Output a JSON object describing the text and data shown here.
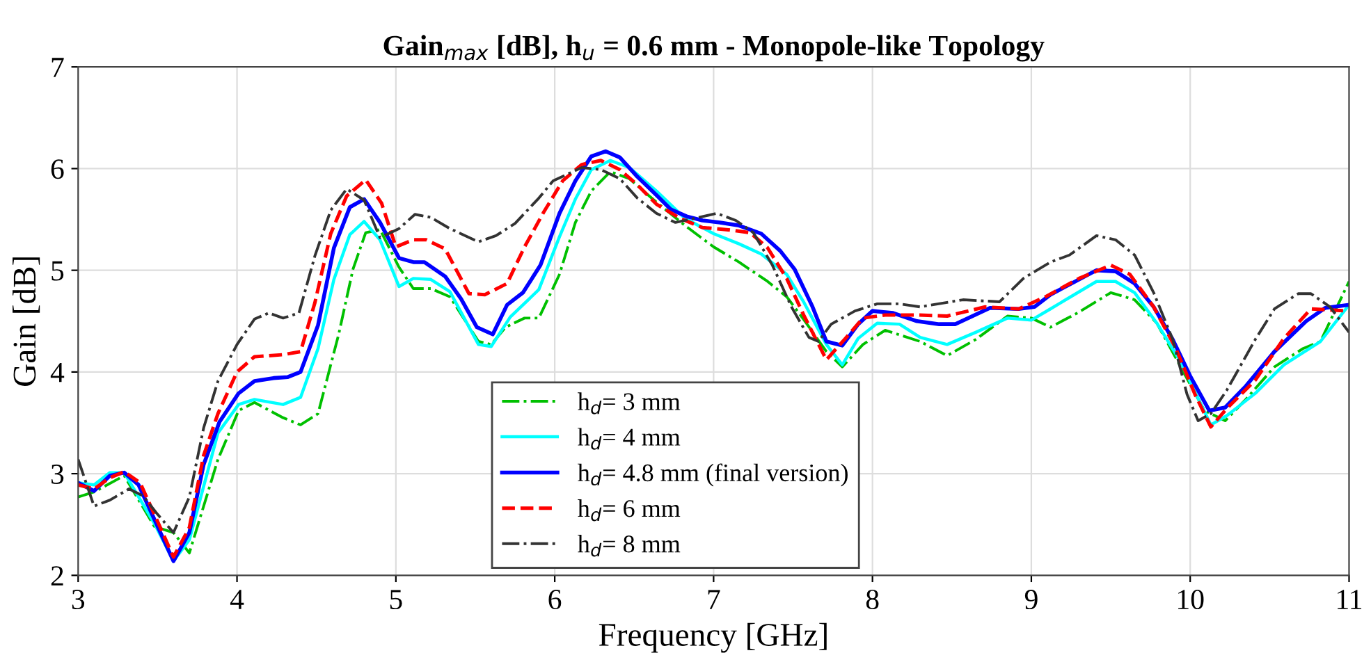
{
  "chart_data": {
    "type": "line",
    "title": "Gain$_{max}$ [dB], h$_{u}$ = 0.6 mm - Monopole-like Topology",
    "xlabel": "Frequency [GHz]",
    "ylabel": "Gain [dB]",
    "xlim": [
      3,
      11
    ],
    "ylim": [
      2,
      7
    ],
    "xticks": [
      3,
      4,
      5,
      6,
      7,
      8,
      9,
      10,
      11
    ],
    "yticks": [
      2,
      3,
      4,
      5,
      6,
      7
    ],
    "grid": true,
    "legend": "bottom",
    "marker": "none",
    "series": [
      {
        "name": "h$_{d}$= 3 mm",
        "color": "#00c000",
        "line_style": "dashdot",
        "x": [
          3.0,
          3.1,
          3.29,
          3.48,
          3.6,
          3.7,
          3.88,
          4.01,
          4.11,
          4.29,
          4.4,
          4.51,
          4.64,
          4.73,
          4.81,
          4.9,
          5.02,
          5.11,
          5.22,
          5.34,
          5.52,
          5.6,
          5.69,
          5.81,
          5.9,
          6.03,
          6.13,
          6.23,
          6.35,
          6.47,
          6.64,
          6.82,
          7.0,
          7.16,
          7.34,
          7.46,
          7.57,
          7.71,
          7.81,
          7.94,
          8.08,
          8.3,
          8.47,
          8.65,
          8.85,
          9.0,
          9.12,
          9.29,
          9.5,
          9.65,
          9.79,
          9.94,
          10.09,
          10.22,
          10.35,
          10.53,
          10.71,
          10.82,
          11.0
        ],
        "values": [
          2.77,
          2.82,
          2.98,
          2.48,
          2.42,
          2.22,
          3.14,
          3.62,
          3.7,
          3.55,
          3.48,
          3.59,
          4.37,
          5.01,
          5.37,
          5.4,
          5.03,
          4.82,
          4.82,
          4.74,
          4.3,
          4.27,
          4.44,
          4.53,
          4.53,
          4.96,
          5.47,
          5.78,
          5.97,
          5.9,
          5.67,
          5.44,
          5.23,
          5.08,
          4.89,
          4.74,
          4.51,
          4.2,
          4.05,
          4.27,
          4.41,
          4.3,
          4.16,
          4.32,
          4.55,
          4.53,
          4.44,
          4.58,
          4.78,
          4.71,
          4.48,
          4.05,
          3.62,
          3.52,
          3.73,
          4.05,
          4.23,
          4.3,
          4.89
        ]
      },
      {
        "name": "h$_{d}$= 4 mm",
        "color": "#00ffff",
        "line_style": "solid",
        "x": [
          3.0,
          3.1,
          3.2,
          3.29,
          3.48,
          3.6,
          3.7,
          3.88,
          4.01,
          4.11,
          4.29,
          4.4,
          4.51,
          4.61,
          4.71,
          4.8,
          4.9,
          5.02,
          5.11,
          5.22,
          5.34,
          5.52,
          5.6,
          5.72,
          5.9,
          6.03,
          6.13,
          6.23,
          6.35,
          6.47,
          6.64,
          6.82,
          7.0,
          7.16,
          7.3,
          7.46,
          7.57,
          7.71,
          7.81,
          7.91,
          8.03,
          8.17,
          8.3,
          8.47,
          8.65,
          8.85,
          9.0,
          9.12,
          9.41,
          9.53,
          9.65,
          9.79,
          9.94,
          10.13,
          10.23,
          10.41,
          10.59,
          10.82,
          11.0
        ],
        "values": [
          2.91,
          2.89,
          3.01,
          3.01,
          2.51,
          2.14,
          2.35,
          3.4,
          3.68,
          3.73,
          3.68,
          3.75,
          4.23,
          4.91,
          5.35,
          5.48,
          5.3,
          4.84,
          4.92,
          4.91,
          4.79,
          4.27,
          4.25,
          4.54,
          4.81,
          5.33,
          5.7,
          5.99,
          6.08,
          6.01,
          5.78,
          5.51,
          5.36,
          5.26,
          5.16,
          4.96,
          4.68,
          4.27,
          4.07,
          4.33,
          4.48,
          4.47,
          4.34,
          4.27,
          4.39,
          4.53,
          4.51,
          4.62,
          4.89,
          4.89,
          4.78,
          4.48,
          4.1,
          3.48,
          3.57,
          3.79,
          4.07,
          4.3,
          4.66
        ]
      },
      {
        "name": "h$_{d}$= 4.8 mm (final version)",
        "color": "#0000ff",
        "line_style": "solid",
        "x": [
          3.0,
          3.1,
          3.2,
          3.29,
          3.38,
          3.48,
          3.6,
          3.7,
          3.79,
          3.89,
          4.01,
          4.11,
          4.23,
          4.32,
          4.4,
          4.51,
          4.61,
          4.71,
          4.8,
          4.9,
          5.02,
          5.11,
          5.18,
          5.31,
          5.41,
          5.51,
          5.61,
          5.7,
          5.8,
          5.91,
          6.03,
          6.13,
          6.23,
          6.32,
          6.41,
          6.52,
          6.64,
          6.73,
          6.83,
          6.93,
          7.04,
          7.16,
          7.3,
          7.42,
          7.51,
          7.62,
          7.71,
          7.81,
          7.91,
          8.0,
          8.13,
          8.28,
          8.42,
          8.52,
          8.74,
          8.92,
          9.02,
          9.12,
          9.41,
          9.53,
          9.65,
          9.77,
          9.89,
          10.0,
          10.12,
          10.22,
          10.35,
          10.53,
          10.73,
          10.85,
          11.0
        ],
        "values": [
          2.91,
          2.83,
          2.98,
          3.01,
          2.89,
          2.55,
          2.14,
          2.42,
          3.09,
          3.51,
          3.79,
          3.91,
          3.94,
          3.95,
          4.0,
          4.46,
          5.22,
          5.62,
          5.7,
          5.47,
          5.12,
          5.08,
          5.08,
          4.94,
          4.72,
          4.44,
          4.37,
          4.66,
          4.78,
          5.05,
          5.56,
          5.88,
          6.12,
          6.17,
          6.11,
          5.92,
          5.74,
          5.6,
          5.53,
          5.49,
          5.47,
          5.44,
          5.36,
          5.19,
          5.01,
          4.65,
          4.3,
          4.26,
          4.47,
          4.6,
          4.58,
          4.5,
          4.47,
          4.47,
          4.63,
          4.62,
          4.64,
          4.76,
          5.0,
          4.99,
          4.87,
          4.64,
          4.32,
          3.96,
          3.62,
          3.65,
          3.86,
          4.2,
          4.5,
          4.63,
          4.66
        ]
      },
      {
        "name": "h$_{d}$= 6 mm",
        "color": "#ff0000",
        "line_style": "dashed",
        "x": [
          3.0,
          3.1,
          3.2,
          3.29,
          3.39,
          3.48,
          3.6,
          3.7,
          3.79,
          3.88,
          4.0,
          4.11,
          4.29,
          4.4,
          4.49,
          4.59,
          4.69,
          4.81,
          4.91,
          5.0,
          5.11,
          5.19,
          5.31,
          5.46,
          5.56,
          5.7,
          5.81,
          5.93,
          6.05,
          6.17,
          6.29,
          6.41,
          6.52,
          6.64,
          6.79,
          6.93,
          7.08,
          7.23,
          7.34,
          7.46,
          7.57,
          7.71,
          7.83,
          7.94,
          8.08,
          8.28,
          8.47,
          8.71,
          8.92,
          9.09,
          9.3,
          9.5,
          9.62,
          9.77,
          9.91,
          10.03,
          10.13,
          10.23,
          10.41,
          10.59,
          10.76,
          11.0
        ],
        "values": [
          2.89,
          2.85,
          2.96,
          3.02,
          2.91,
          2.6,
          2.18,
          2.47,
          3.18,
          3.59,
          4.0,
          4.15,
          4.17,
          4.2,
          4.68,
          5.36,
          5.73,
          5.89,
          5.66,
          5.23,
          5.3,
          5.3,
          5.21,
          4.77,
          4.76,
          4.87,
          5.23,
          5.57,
          5.88,
          6.04,
          6.08,
          5.99,
          5.84,
          5.65,
          5.51,
          5.42,
          5.4,
          5.37,
          5.22,
          4.92,
          4.55,
          4.12,
          4.33,
          4.53,
          4.56,
          4.56,
          4.55,
          4.64,
          4.62,
          4.74,
          4.92,
          5.05,
          4.96,
          4.64,
          4.23,
          3.78,
          3.46,
          3.64,
          3.92,
          4.33,
          4.62,
          4.6
        ]
      },
      {
        "name": "h$_{d}$= 8 mm",
        "color": "#333333",
        "line_style": "dashdot",
        "x": [
          3.0,
          3.1,
          3.2,
          3.32,
          3.41,
          3.5,
          3.6,
          3.7,
          3.79,
          3.88,
          4.0,
          4.11,
          4.2,
          4.29,
          4.39,
          4.49,
          4.59,
          4.69,
          4.8,
          4.9,
          5.02,
          5.12,
          5.22,
          5.34,
          5.52,
          5.63,
          5.75,
          5.9,
          5.99,
          6.17,
          6.29,
          6.41,
          6.52,
          6.64,
          6.76,
          6.88,
          7.02,
          7.14,
          7.25,
          7.37,
          7.49,
          7.6,
          7.66,
          7.74,
          7.89,
          8.03,
          8.17,
          8.3,
          8.57,
          8.8,
          8.95,
          9.12,
          9.24,
          9.41,
          9.53,
          9.65,
          9.77,
          9.89,
          9.98,
          10.05,
          10.13,
          10.23,
          10.41,
          10.53,
          10.68,
          10.76,
          10.88,
          11.0
        ],
        "values": [
          3.14,
          2.68,
          2.74,
          2.85,
          2.78,
          2.6,
          2.42,
          2.77,
          3.45,
          3.91,
          4.27,
          4.52,
          4.58,
          4.53,
          4.58,
          5.14,
          5.59,
          5.8,
          5.69,
          5.32,
          5.41,
          5.55,
          5.52,
          5.41,
          5.28,
          5.34,
          5.46,
          5.71,
          5.88,
          6.01,
          5.99,
          5.9,
          5.71,
          5.56,
          5.47,
          5.51,
          5.56,
          5.49,
          5.37,
          5.05,
          4.64,
          4.34,
          4.3,
          4.47,
          4.6,
          4.67,
          4.67,
          4.64,
          4.71,
          4.69,
          4.92,
          5.08,
          5.15,
          5.34,
          5.3,
          5.15,
          4.78,
          4.32,
          3.78,
          3.52,
          3.59,
          3.82,
          4.32,
          4.62,
          4.77,
          4.77,
          4.64,
          4.39
        ]
      }
    ]
  }
}
